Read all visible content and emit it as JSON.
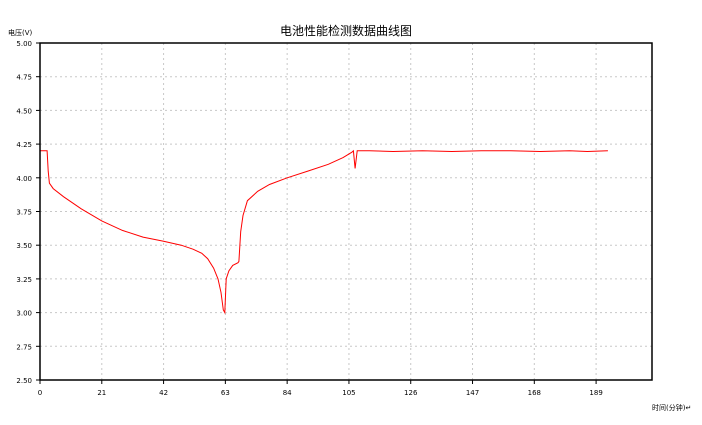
{
  "chart_data": {
    "type": "line",
    "title": "电池性能检测数据曲线图",
    "ylabel": "电压(V)",
    "xlabel": "时间(分钟)↵",
    "xlim": [
      0,
      208
    ],
    "ylim": [
      2.5,
      5.0
    ],
    "xticks": [
      0,
      21,
      42,
      63,
      84,
      105,
      126,
      147,
      168,
      189
    ],
    "yticks": [
      "2.50",
      "2.75",
      "3.00",
      "3.25",
      "3.50",
      "3.75",
      "4.00",
      "4.25",
      "4.50",
      "4.75",
      "5.00"
    ],
    "grid": true,
    "series_color": "#ff0000",
    "series": [
      {
        "x": [
          0,
          2.4,
          2.8,
          3.2,
          4.5,
          8,
          14,
          21,
          28,
          35,
          42,
          48,
          52,
          55,
          57,
          59,
          60.5,
          61.5,
          62.3,
          62.8,
          63.3,
          64.2,
          65.5,
          67.3,
          67.6,
          68.2,
          69,
          70.5,
          74,
          78,
          84,
          91,
          98,
          103,
          106,
          106.5,
          107.1,
          107.8,
          108.5,
          112,
          120,
          130,
          140,
          150,
          160,
          170,
          180,
          186,
          193
        ],
        "y": [
          4.2,
          4.2,
          4.05,
          3.96,
          3.92,
          3.86,
          3.77,
          3.68,
          3.61,
          3.56,
          3.53,
          3.5,
          3.47,
          3.44,
          3.4,
          3.33,
          3.25,
          3.15,
          3.02,
          3.0,
          3.25,
          3.31,
          3.35,
          3.37,
          3.38,
          3.6,
          3.72,
          3.83,
          3.9,
          3.95,
          4.0,
          4.05,
          4.1,
          4.15,
          4.19,
          4.2,
          4.07,
          4.2,
          4.2,
          4.2,
          4.195,
          4.2,
          4.195,
          4.2,
          4.2,
          4.195,
          4.2,
          4.195,
          4.2
        ]
      }
    ]
  }
}
